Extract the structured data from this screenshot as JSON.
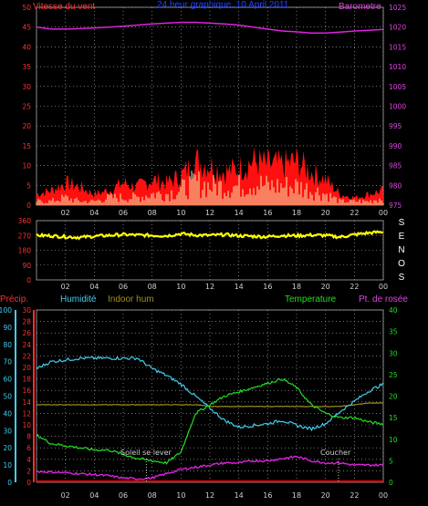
{
  "colors": {
    "wind": "#ff0000",
    "gust_fill": "#ff1010",
    "wind_avg": "#f0f0b0",
    "barometer": "#dd22dd",
    "direction": "#ffff00",
    "temperature": "#22dd22",
    "humidity": "#44ccee",
    "indoor_hum": "#a09020",
    "dewpoint": "#dd22dd",
    "precip": "#ff0000",
    "title": "#2244ff",
    "grid": "#bbbbbb"
  },
  "chart_data": [
    {
      "type": "area",
      "title": "24 heur graphique, 10 April 2011",
      "left_label": "Vitesse du vent",
      "right_label": "Barometre",
      "x_ticks": [
        "02",
        "04",
        "06",
        "08",
        "10",
        "12",
        "14",
        "16",
        "18",
        "20",
        "22",
        "00"
      ],
      "left_ticks": [
        "0",
        "5",
        "10",
        "15",
        "20",
        "25",
        "30",
        "35",
        "40",
        "45",
        "50"
      ],
      "right_ticks": [
        "975",
        "980",
        "985",
        "990",
        "995",
        "1000",
        "1005",
        "1010",
        "1015",
        "1020",
        "1025"
      ],
      "ylim_left": [
        0,
        50
      ],
      "ylim_right": [
        975,
        1025
      ],
      "hours": [
        0,
        1,
        2,
        3,
        4,
        5,
        6,
        7,
        8,
        9,
        10,
        11,
        12,
        13,
        14,
        15,
        16,
        17,
        18,
        19,
        20,
        21,
        22,
        23,
        24
      ],
      "series": [
        {
          "key": "gust",
          "values": [
            3,
            4,
            6,
            5,
            3,
            4,
            6,
            5,
            7,
            6,
            8,
            12,
            11,
            9,
            10,
            12,
            11,
            11,
            12,
            9,
            7,
            3,
            2,
            3,
            4
          ]
        },
        {
          "key": "wind_avg",
          "values": [
            1,
            1,
            2,
            1,
            1,
            2,
            2,
            2,
            3,
            3,
            4,
            6,
            5,
            5,
            5,
            6,
            5,
            5,
            5,
            4,
            3,
            1,
            1,
            1,
            2
          ]
        },
        {
          "key": "barometer",
          "values": [
            1020,
            1019.5,
            1019.5,
            1019.6,
            1019.8,
            1020,
            1020.2,
            1020.5,
            1020.8,
            1021,
            1021.2,
            1021.2,
            1021,
            1020.8,
            1020.5,
            1020,
            1019.5,
            1019,
            1018.8,
            1018.5,
            1018.5,
            1018.7,
            1019,
            1019.2,
            1019.4
          ]
        }
      ]
    },
    {
      "type": "scatter",
      "x_ticks": [
        "02",
        "04",
        "06",
        "08",
        "10",
        "12",
        "14",
        "16",
        "18",
        "20",
        "22",
        "00"
      ],
      "left_ticks": [
        "0",
        "90",
        "180",
        "270",
        "360"
      ],
      "ylim": [
        0,
        360
      ],
      "compass": [
        "S",
        "E",
        "N",
        "O",
        "S"
      ],
      "hours": [
        0,
        1,
        2,
        3,
        4,
        5,
        6,
        7,
        8,
        9,
        10,
        11,
        12,
        13,
        14,
        15,
        16,
        17,
        18,
        19,
        20,
        21,
        22,
        23,
        24
      ],
      "series": [
        {
          "key": "direction",
          "values": [
            270,
            268,
            262,
            258,
            265,
            270,
            275,
            272,
            270,
            268,
            280,
            272,
            270,
            275,
            268,
            265,
            262,
            270,
            268,
            272,
            270,
            260,
            275,
            285,
            292
          ]
        }
      ]
    },
    {
      "type": "line",
      "precip_label": "Précip.",
      "humidity_label": "Humidité",
      "indoor_label": "Indoor hum",
      "temp_label": "Temperature",
      "dew_label": "Pt. de rosée",
      "sunrise_label": "Soleil se lever",
      "sunset_label": "Coucher",
      "sunrise_hour": 7.6,
      "sunset_hour": 20.9,
      "x_ticks": [
        "02",
        "04",
        "06",
        "08",
        "10",
        "12",
        "14",
        "16",
        "18",
        "20",
        "22",
        "00"
      ],
      "precip_ticks": [
        "0",
        "2",
        "4",
        "6",
        "8",
        "10",
        "12",
        "14",
        "16",
        "18",
        "20",
        "22",
        "24",
        "26",
        "28",
        "30"
      ],
      "humidity_ticks": [
        "0",
        "10",
        "20",
        "30",
        "40",
        "50",
        "60",
        "70",
        "80",
        "90",
        "100"
      ],
      "temp_ticks": [
        "0",
        "5",
        "10",
        "15",
        "20",
        "25",
        "30",
        "35",
        "40"
      ],
      "ylim_humidity": [
        0,
        100
      ],
      "ylim_temp": [
        0,
        40
      ],
      "hours": [
        0,
        1,
        2,
        3,
        4,
        5,
        6,
        7,
        8,
        9,
        10,
        11,
        12,
        13,
        14,
        15,
        16,
        17,
        18,
        19,
        20,
        21,
        22,
        23,
        24
      ],
      "series": [
        {
          "key": "humidity",
          "values": [
            66,
            70,
            71,
            72,
            72,
            72,
            72,
            72,
            66,
            62,
            57,
            50,
            43,
            36,
            32,
            33,
            34,
            36,
            33,
            31,
            34,
            41,
            47,
            53,
            57
          ]
        },
        {
          "key": "temperature",
          "values": [
            11,
            9,
            8.5,
            8,
            7.5,
            7.5,
            6.5,
            5.5,
            5,
            4.5,
            7,
            16,
            18,
            20,
            21,
            22,
            23,
            24,
            22,
            18,
            16,
            15,
            15,
            14,
            13.5
          ]
        },
        {
          "key": "indoor_hum",
          "values": [
            45,
            45,
            45,
            45,
            45,
            45,
            45,
            45,
            45,
            45,
            45,
            45,
            44,
            44,
            44,
            44,
            44,
            44,
            44,
            44,
            44,
            44,
            45,
            46,
            46
          ]
        },
        {
          "key": "dewpoint",
          "values": [
            2.5,
            2.4,
            2.2,
            2,
            1.8,
            1.5,
            1,
            0.8,
            1,
            2,
            3,
            3.5,
            4,
            4.5,
            4.5,
            5,
            5,
            5.5,
            6,
            5,
            4.5,
            4.5,
            4,
            4,
            4
          ]
        }
      ]
    }
  ]
}
